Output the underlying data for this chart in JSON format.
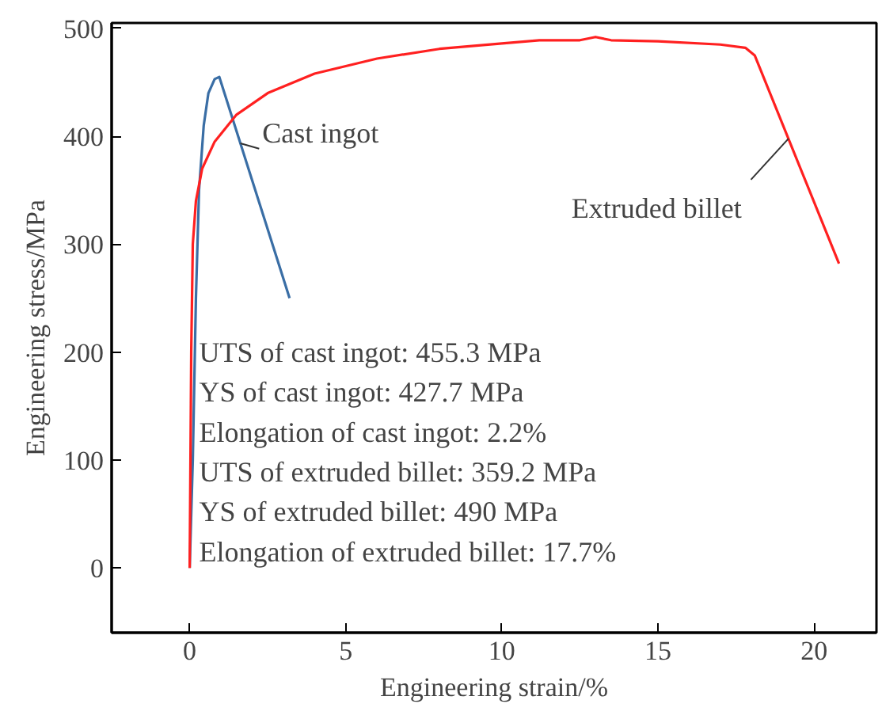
{
  "chart_data": {
    "type": "line",
    "xlabel": "Engineering strain/%",
    "ylabel": "Engineering stress/MPa",
    "xlim": [
      -2.5,
      22
    ],
    "ylim": [
      -60,
      505
    ],
    "xticks": [
      0,
      5,
      10,
      15,
      20
    ],
    "yticks": [
      0,
      100,
      200,
      300,
      400,
      500
    ],
    "grid": false,
    "marker": "none",
    "line_style": "solid",
    "series": [
      {
        "name": "Cast ingot",
        "color": "#3a6ea5",
        "x": [
          0,
          0.1,
          0.2,
          0.3,
          0.45,
          0.6,
          0.8,
          0.95,
          3.2
        ],
        "values": [
          0,
          100,
          250,
          350,
          410,
          440,
          453,
          455,
          250
        ]
      },
      {
        "name": "Extruded billet",
        "color": "#ff2020",
        "x": [
          0,
          0.05,
          0.1,
          0.2,
          0.4,
          0.8,
          1.5,
          2.5,
          4,
          6,
          8,
          10,
          11.2,
          12.5,
          13,
          13.5,
          15,
          17,
          17.8,
          18.1,
          20.8
        ],
        "values": [
          0,
          200,
          300,
          340,
          370,
          395,
          420,
          440,
          458,
          472,
          481,
          486,
          489,
          489,
          492,
          489,
          488,
          485,
          482,
          475,
          282
        ]
      }
    ],
    "annotations": [
      "UTS of cast ingot: 455.3 MPa",
      "YS of cast ingot: 427.7 MPa",
      "Elongation of cast ingot: 2.2%",
      "UTS of extruded billet: 359.2 MPa",
      "YS of extruded billet: 490 MPa",
      "Elongation of extruded billet: 17.7%"
    ]
  }
}
